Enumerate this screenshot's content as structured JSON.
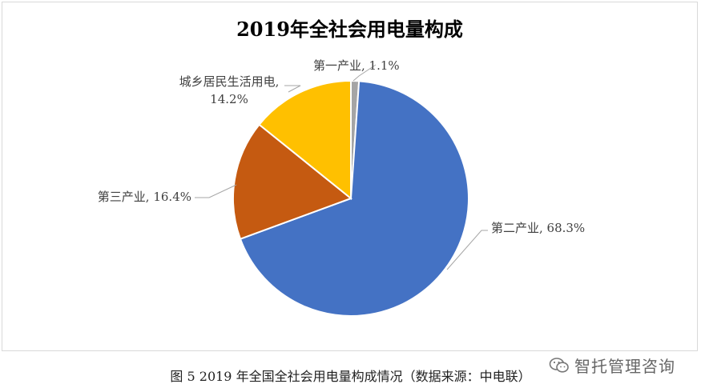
{
  "chart_data": {
    "type": "pie",
    "title": "2019年全社会用电量构成",
    "slices": [
      {
        "label": "第一产业, 1.1%",
        "name": "第一产业",
        "value": 1.1,
        "color": "#a5a5a5"
      },
      {
        "label": "第二产业, 68.3%",
        "name": "第二产业",
        "value": 68.3,
        "color": "#4472c4"
      },
      {
        "label": "第三产业, 16.4%",
        "name": "第三产业",
        "value": 16.4,
        "color": "#c55a11"
      },
      {
        "label": "城乡居民生活用电, 14.2%",
        "name": "城乡居民生活用电",
        "value": 14.2,
        "color": "#ffc000"
      }
    ],
    "start": "12 o'clock",
    "direction": "clockwise",
    "legend": "none"
  },
  "caption": "图 5 2019 年全国全社会用电量构成情况（数据来源：中电联）",
  "watermark": "智托管理咨询"
}
